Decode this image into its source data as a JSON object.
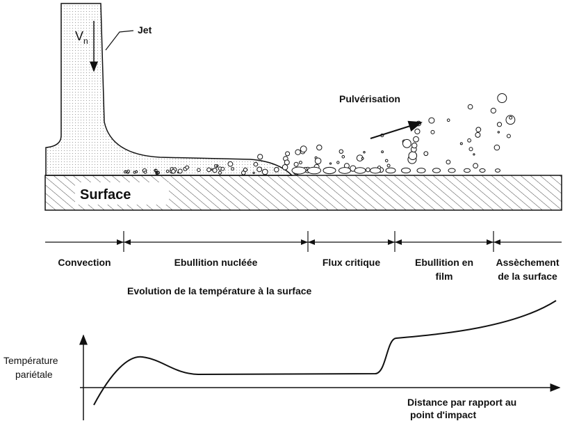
{
  "jet": {
    "velocity": "V",
    "velocity_subscript": "n",
    "label": "Jet"
  },
  "spray_label": "Pulvérisation",
  "surface_label": "Surface",
  "regimes": [
    {
      "lines": [
        "Convection"
      ]
    },
    {
      "lines": [
        "Ebullition nucléée"
      ]
    },
    {
      "lines": [
        "Flux critique"
      ]
    },
    {
      "lines": [
        "Ebullition en",
        "film"
      ]
    },
    {
      "lines": [
        "Assèchement",
        "de la surface"
      ]
    }
  ],
  "graph": {
    "title": "Evolution de la température à la surface",
    "y_axis_label": [
      "Température",
      "pariétale"
    ],
    "x_axis_label": [
      "Distance par rapport au",
      "point d'impact"
    ]
  }
}
